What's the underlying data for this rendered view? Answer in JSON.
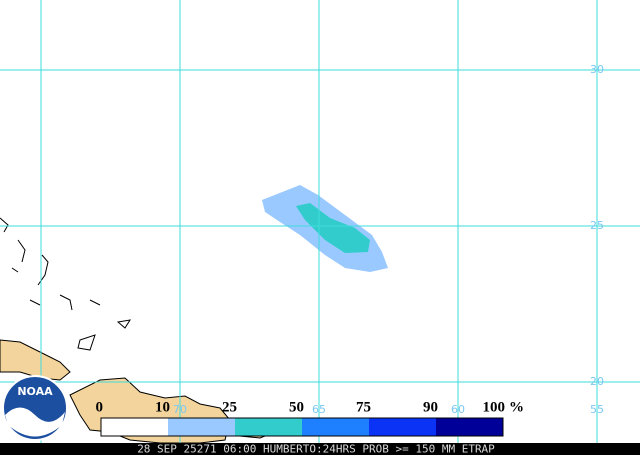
{
  "map": {
    "latitude_labels": [
      30,
      25,
      20
    ],
    "longitude_labels": [
      70,
      65,
      60,
      55
    ],
    "grid_color": "#3fdcdc",
    "legend": {
      "thresholds": [
        0,
        10,
        25,
        50,
        75,
        90,
        100
      ],
      "unit": "%",
      "colors": [
        "#ffffff",
        "#99c9ff",
        "#33cccc",
        "#1e80ff",
        "#0a33f5",
        "#000099"
      ]
    },
    "logo": "NOAA",
    "footer": "28 SEP 25271 06:00 HUMBERTO:24HRS PROB >= 150 MM ETRAP"
  }
}
